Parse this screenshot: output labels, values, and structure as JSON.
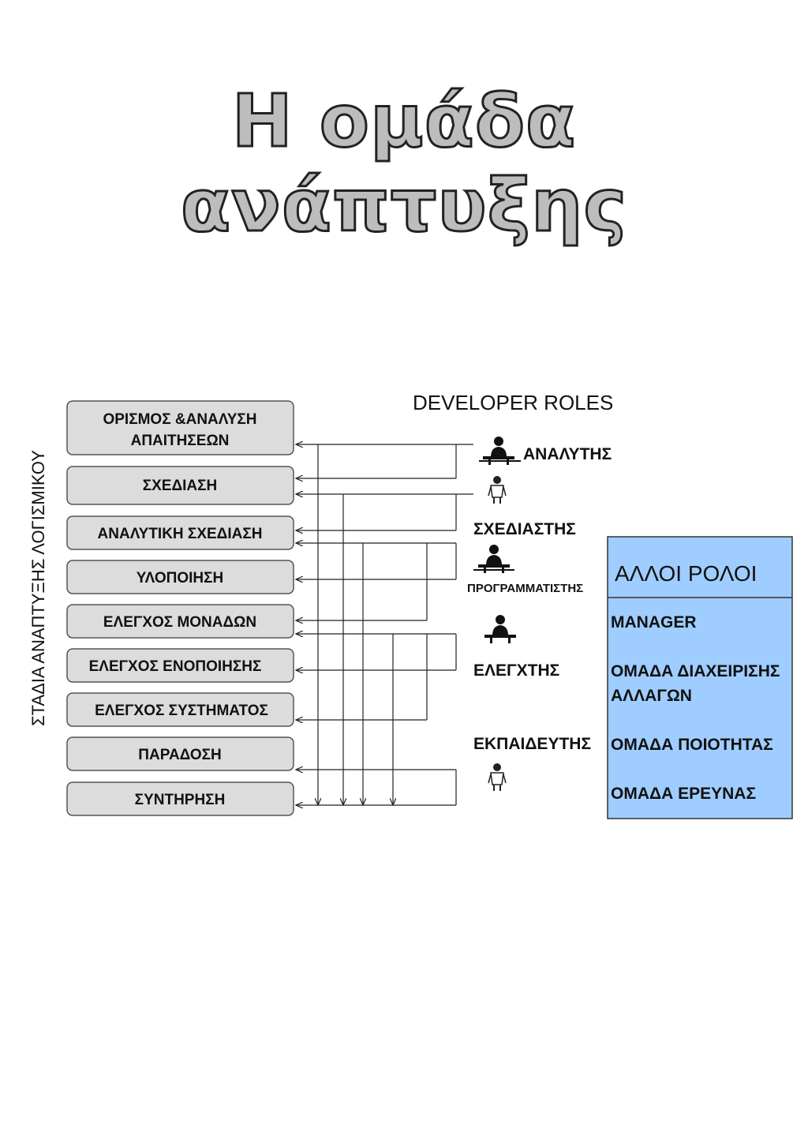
{
  "title": "Η ομάδα ανάπτυξης",
  "vertical_label": "ΣΤΑΔΙΑ ΑΝΑΠΤΥΞΗΣ ΛΟΓΙΣΜΙΚΟΥ",
  "developer_roles_heading": "DEVELOPER ROLES",
  "stages": [
    [
      "ΟΡΙΣΜΟΣ &ΑΝΑΛΥΣΗ",
      "ΑΠΑΙΤΗΣΕΩΝ"
    ],
    [
      "ΣΧΕΔΙΑΣΗ"
    ],
    [
      "ΑΝΑΛΥΤΙΚΗ ΣΧΕΔΙΑΣΗ"
    ],
    [
      "ΥΛΟΠΟΙΗΣΗ"
    ],
    [
      "ΕΛΕΓΧΟΣ ΜΟΝΑΔΩΝ"
    ],
    [
      "ΕΛΕΓΧΟΣ ΕΝΟΠΟΙΗΣΗΣ"
    ],
    [
      "ΕΛΕΓΧΟΣ ΣΥΣΤΗΜΑΤΟΣ"
    ],
    [
      "ΠΑΡΑΔΟΣΗ"
    ],
    [
      "ΣΥΝΤΗΡΗΣΗ"
    ]
  ],
  "roles": [
    "ΑΝΑΛΥΤΗΣ",
    "ΣΧΕΔΙΑΣΤΗΣ",
    "ΠΡΟΓΡΑΜΜΑΤΙΣΤΗΣ",
    "ΕΛΕΓΧΤΗΣ",
    "ΕΚΠΑΙΔΕΥΤΗΣ"
  ],
  "other_roles": {
    "heading": "ΑΛΛΟΙ ΡΟΛΟΙ",
    "items": [
      [
        "MANAGER"
      ],
      [
        "ΟΜΑΔΑ ΔΙΑΧΕΙΡΙΣΗΣ",
        "ΑΛΛΑΓΩΝ"
      ],
      [
        "ΟΜΑΔΑ ΠΟΙΟΤΗΤΑΣ"
      ],
      [
        "ΟΜΑΔΑ ΕΡΕΥΝΑΣ"
      ]
    ]
  },
  "colors": {
    "stage_fill": "#dcdcdc",
    "other_roles_fill": "#9fcdff",
    "line": "#222222"
  },
  "icons": [
    "person-at-desk-icon",
    "standing-person-icon"
  ]
}
